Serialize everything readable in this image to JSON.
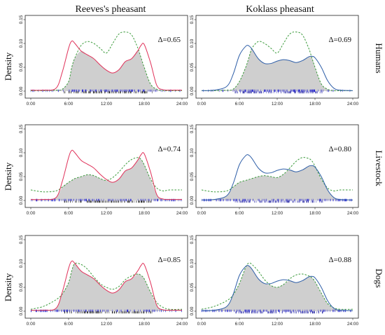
{
  "figure": {
    "column_titles": [
      "Reeves's pheasant",
      "Koklass pheasant"
    ],
    "row_titles": [
      "Humans",
      "Livestock",
      "Dogs"
    ],
    "ylabel": "Density",
    "x_tick_labels": [
      "0:00",
      "6:00",
      "12:00",
      "18:00",
      "24:00"
    ],
    "y_tick_labels": [
      "0.00",
      "0.05",
      "0.10",
      "0.15"
    ]
  },
  "colors": {
    "reeves_line": "#e0325a",
    "koklass_line": "#2f5fa8",
    "threat_line": "#3a9a3a",
    "overlap_fill": "#cfcfcf",
    "rug_bird_reeves": "#111111",
    "rug_bird_koklass": "#2020a0",
    "rug_threat": "#1a1ad0"
  },
  "chart_data": [
    {
      "type": "line",
      "panel": "reeves-humans",
      "species": "Reeves's pheasant",
      "threat": "Humans",
      "delta_label": "Δ=0.65",
      "x": [
        0,
        2,
        4,
        5,
        6,
        6.5,
        7,
        8,
        9,
        10,
        11,
        12,
        13,
        14,
        15,
        16,
        17,
        17.5,
        18,
        19,
        20,
        21,
        22,
        24
      ],
      "series": [
        {
          "role": "species",
          "values": [
            0.002,
            0.002,
            0.006,
            0.04,
            0.09,
            0.105,
            0.1,
            0.084,
            0.076,
            0.068,
            0.055,
            0.044,
            0.038,
            0.045,
            0.062,
            0.068,
            0.085,
            0.096,
            0.098,
            0.06,
            0.012,
            0.003,
            0.002,
            0.002
          ]
        },
        {
          "role": "threat",
          "values": [
            0.001,
            0.001,
            0.002,
            0.004,
            0.02,
            0.05,
            0.07,
            0.096,
            0.104,
            0.1,
            0.09,
            0.08,
            0.1,
            0.12,
            0.124,
            0.118,
            0.09,
            0.07,
            0.05,
            0.015,
            0.004,
            0.001,
            0.001,
            0.001
          ]
        }
      ],
      "xlim": [
        0,
        24
      ],
      "ylim": [
        0,
        0.15
      ]
    },
    {
      "type": "line",
      "panel": "koklass-humans",
      "species": "Koklass pheasant",
      "threat": "Humans",
      "delta_label": "Δ=0.69",
      "x": [
        0,
        2,
        4,
        5,
        6,
        7,
        7.5,
        8,
        9,
        10,
        11,
        12,
        13,
        14,
        15,
        16,
        17,
        17.5,
        18,
        19,
        20,
        21,
        22,
        24
      ],
      "series": [
        {
          "role": "species",
          "values": [
            0.001,
            0.002,
            0.01,
            0.035,
            0.075,
            0.094,
            0.095,
            0.088,
            0.068,
            0.058,
            0.058,
            0.063,
            0.066,
            0.064,
            0.06,
            0.064,
            0.072,
            0.073,
            0.07,
            0.05,
            0.022,
            0.006,
            0.002,
            0.001
          ]
        },
        {
          "role": "threat",
          "values": [
            0.001,
            0.001,
            0.002,
            0.004,
            0.02,
            0.05,
            0.07,
            0.09,
            0.104,
            0.1,
            0.09,
            0.08,
            0.1,
            0.12,
            0.124,
            0.118,
            0.09,
            0.07,
            0.05,
            0.015,
            0.004,
            0.001,
            0.001,
            0.001
          ]
        }
      ],
      "xlim": [
        0,
        24
      ],
      "ylim": [
        0,
        0.15
      ]
    },
    {
      "type": "line",
      "panel": "reeves-livestock",
      "species": "Reeves's pheasant",
      "threat": "Livestock",
      "delta_label": "Δ=0.74",
      "x": [
        0,
        2,
        4,
        5,
        6,
        6.5,
        7,
        8,
        9,
        10,
        11,
        12,
        13,
        14,
        15,
        16,
        17,
        17.5,
        18,
        19,
        20,
        21,
        22,
        24
      ],
      "series": [
        {
          "role": "species",
          "values": [
            0.002,
            0.002,
            0.006,
            0.04,
            0.09,
            0.105,
            0.1,
            0.084,
            0.076,
            0.068,
            0.055,
            0.044,
            0.038,
            0.045,
            0.062,
            0.068,
            0.085,
            0.096,
            0.098,
            0.06,
            0.012,
            0.003,
            0.002,
            0.002
          ]
        },
        {
          "role": "threat",
          "values": [
            0.022,
            0.018,
            0.02,
            0.028,
            0.038,
            0.042,
            0.046,
            0.05,
            0.054,
            0.052,
            0.046,
            0.042,
            0.048,
            0.06,
            0.075,
            0.086,
            0.09,
            0.086,
            0.075,
            0.045,
            0.026,
            0.02,
            0.022,
            0.022
          ]
        }
      ],
      "xlim": [
        0,
        24
      ],
      "ylim": [
        0,
        0.15
      ]
    },
    {
      "type": "line",
      "panel": "koklass-livestock",
      "species": "Koklass pheasant",
      "threat": "Livestock",
      "delta_label": "Δ=0.80",
      "x": [
        0,
        2,
        4,
        5,
        6,
        7,
        7.5,
        8,
        9,
        10,
        11,
        12,
        13,
        14,
        15,
        16,
        17,
        17.5,
        18,
        19,
        20,
        21,
        22,
        24
      ],
      "series": [
        {
          "role": "species",
          "values": [
            0.001,
            0.002,
            0.01,
            0.035,
            0.075,
            0.094,
            0.095,
            0.088,
            0.068,
            0.058,
            0.058,
            0.063,
            0.066,
            0.064,
            0.06,
            0.064,
            0.072,
            0.073,
            0.07,
            0.05,
            0.022,
            0.006,
            0.002,
            0.001
          ]
        },
        {
          "role": "threat",
          "values": [
            0.022,
            0.018,
            0.02,
            0.028,
            0.038,
            0.042,
            0.044,
            0.046,
            0.05,
            0.052,
            0.05,
            0.048,
            0.055,
            0.068,
            0.082,
            0.09,
            0.088,
            0.083,
            0.072,
            0.045,
            0.026,
            0.02,
            0.022,
            0.022
          ]
        }
      ],
      "xlim": [
        0,
        24
      ],
      "ylim": [
        0,
        0.15
      ]
    },
    {
      "type": "line",
      "panel": "reeves-dogs",
      "species": "Reeves's pheasant",
      "threat": "Dogs",
      "delta_label": "Δ=0.85",
      "x": [
        0,
        2,
        4,
        5,
        6,
        6.5,
        7,
        8,
        9,
        10,
        11,
        12,
        13,
        14,
        15,
        16,
        17,
        17.5,
        18,
        19,
        20,
        21,
        22,
        24
      ],
      "series": [
        {
          "role": "species",
          "values": [
            0.002,
            0.002,
            0.006,
            0.04,
            0.09,
            0.105,
            0.1,
            0.084,
            0.076,
            0.068,
            0.055,
            0.044,
            0.038,
            0.045,
            0.062,
            0.068,
            0.085,
            0.096,
            0.098,
            0.06,
            0.012,
            0.003,
            0.002,
            0.002
          ]
        },
        {
          "role": "threat",
          "values": [
            0.004,
            0.01,
            0.024,
            0.036,
            0.06,
            0.085,
            0.1,
            0.098,
            0.088,
            0.072,
            0.058,
            0.05,
            0.046,
            0.052,
            0.066,
            0.074,
            0.078,
            0.075,
            0.068,
            0.04,
            0.018,
            0.008,
            0.004,
            0.004
          ]
        }
      ],
      "xlim": [
        0,
        24
      ],
      "ylim": [
        0,
        0.15
      ]
    },
    {
      "type": "line",
      "panel": "koklass-dogs",
      "species": "Koklass pheasant",
      "threat": "Dogs",
      "delta_label": "Δ=0.88",
      "x": [
        0,
        2,
        4,
        5,
        6,
        7,
        7.5,
        8,
        9,
        10,
        11,
        12,
        13,
        14,
        15,
        16,
        17,
        17.5,
        18,
        19,
        20,
        21,
        22,
        24
      ],
      "series": [
        {
          "role": "species",
          "values": [
            0.001,
            0.002,
            0.01,
            0.035,
            0.075,
            0.094,
            0.095,
            0.088,
            0.068,
            0.058,
            0.058,
            0.063,
            0.066,
            0.064,
            0.06,
            0.064,
            0.072,
            0.073,
            0.07,
            0.05,
            0.022,
            0.006,
            0.002,
            0.001
          ]
        },
        {
          "role": "threat",
          "values": [
            0.004,
            0.01,
            0.022,
            0.034,
            0.058,
            0.092,
            0.101,
            0.098,
            0.084,
            0.066,
            0.054,
            0.05,
            0.056,
            0.068,
            0.076,
            0.078,
            0.074,
            0.07,
            0.062,
            0.038,
            0.016,
            0.007,
            0.004,
            0.004
          ]
        }
      ],
      "xlim": [
        0,
        24
      ],
      "ylim": [
        0,
        0.15
      ]
    }
  ]
}
